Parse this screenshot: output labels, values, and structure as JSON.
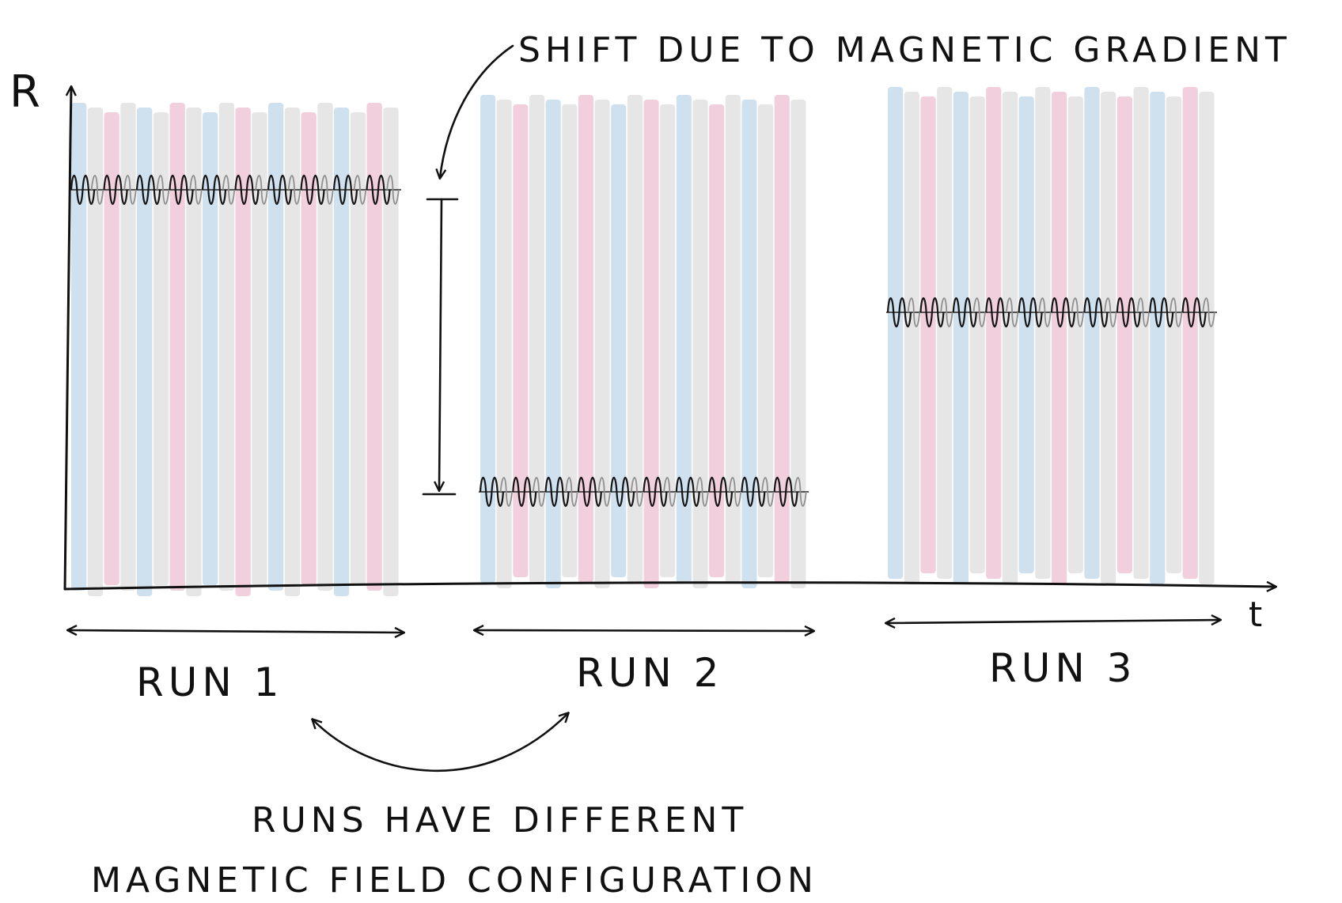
{
  "axes": {
    "y_label": "R",
    "x_label": "t"
  },
  "annotations": {
    "shift": "SHIFT DUE TO MAGNETIC GRADIENT",
    "runs_note_line1": "RUNS HAVE DIFFERENT",
    "runs_note_line2": "MAGNETIC FIELD CONFIGURATION"
  },
  "runs": [
    {
      "label": "RUN 1",
      "level": "high"
    },
    {
      "label": "RUN 2",
      "level": "low"
    },
    {
      "label": "RUN 3",
      "level": "middle"
    }
  ],
  "colors": {
    "stripe_blue": "#cfe0ef",
    "stripe_pink": "#f2cfdc",
    "stripe_gray": "#e6e6e6",
    "ink": "#111111"
  }
}
